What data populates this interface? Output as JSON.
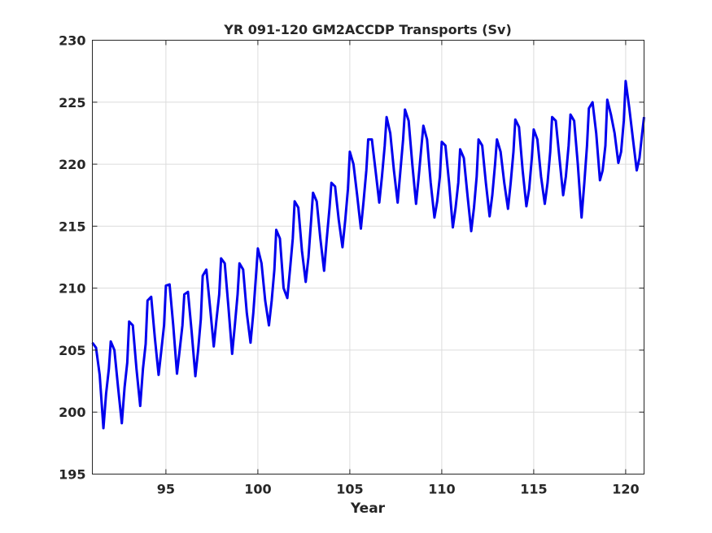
{
  "chart_data": {
    "type": "line",
    "title": "YR 091-120 GM2ACCDP Transports (Sv)",
    "xlabel": "Year",
    "ylabel": "",
    "xlim": [
      91,
      121
    ],
    "ylim": [
      195,
      230
    ],
    "xticks": [
      "95",
      "100",
      "105",
      "110",
      "115",
      "120"
    ],
    "yticks": [
      "195",
      "200",
      "205",
      "210",
      "215",
      "220",
      "225",
      "230"
    ],
    "grid": true,
    "series": [
      {
        "name": "",
        "color": "#0000ee",
        "x": [
          91.0,
          91.2,
          91.4,
          91.6,
          91.75,
          91.9,
          92.0,
          92.2,
          92.4,
          92.6,
          92.75,
          92.9,
          93.0,
          93.2,
          93.4,
          93.6,
          93.75,
          93.9,
          94.0,
          94.2,
          94.4,
          94.6,
          94.75,
          94.9,
          95.0,
          95.2,
          95.4,
          95.6,
          95.75,
          95.9,
          96.0,
          96.2,
          96.4,
          96.6,
          96.75,
          96.9,
          97.0,
          97.2,
          97.4,
          97.6,
          97.75,
          97.9,
          98.0,
          98.2,
          98.4,
          98.6,
          98.75,
          98.9,
          99.0,
          99.2,
          99.4,
          99.6,
          99.75,
          99.9,
          100.0,
          100.2,
          100.4,
          100.6,
          100.75,
          100.9,
          101.0,
          101.2,
          101.4,
          101.6,
          101.75,
          101.9,
          102.0,
          102.2,
          102.4,
          102.6,
          102.75,
          102.9,
          103.0,
          103.2,
          103.4,
          103.6,
          103.75,
          103.9,
          104.0,
          104.2,
          104.4,
          104.6,
          104.75,
          104.9,
          105.0,
          105.2,
          105.4,
          105.6,
          105.75,
          105.9,
          106.0,
          106.2,
          106.4,
          106.6,
          106.75,
          106.9,
          107.0,
          107.2,
          107.4,
          107.6,
          107.75,
          107.9,
          108.0,
          108.2,
          108.4,
          108.6,
          108.75,
          108.9,
          109.0,
          109.2,
          109.4,
          109.6,
          109.75,
          109.9,
          110.0,
          110.2,
          110.4,
          110.6,
          110.75,
          110.9,
          111.0,
          111.2,
          111.4,
          111.6,
          111.75,
          111.9,
          112.0,
          112.2,
          112.4,
          112.6,
          112.75,
          112.9,
          113.0,
          113.2,
          113.4,
          113.6,
          113.75,
          113.9,
          114.0,
          114.2,
          114.4,
          114.6,
          114.75,
          114.9,
          115.0,
          115.2,
          115.4,
          115.6,
          115.75,
          115.9,
          116.0,
          116.2,
          116.4,
          116.6,
          116.75,
          116.9,
          117.0,
          117.2,
          117.4,
          117.6,
          117.75,
          117.9,
          118.0,
          118.2,
          118.4,
          118.6,
          118.75,
          118.9,
          119.0,
          119.2,
          119.4,
          119.6,
          119.75,
          119.9,
          120.0,
          120.2,
          120.4,
          120.6,
          120.75,
          120.9,
          121.0
        ],
        "y": [
          205.6,
          205.2,
          203.0,
          198.7,
          201.5,
          203.5,
          205.7,
          205.0,
          202.0,
          199.1,
          202.0,
          204.0,
          207.3,
          207.0,
          203.5,
          200.5,
          203.5,
          205.5,
          209.0,
          209.3,
          206.0,
          203.0,
          205.0,
          207.0,
          210.2,
          210.3,
          207.0,
          203.1,
          205.0,
          207.0,
          209.5,
          209.7,
          206.5,
          202.9,
          205.0,
          207.5,
          211.0,
          211.5,
          208.5,
          205.3,
          207.5,
          209.5,
          212.4,
          212.0,
          208.5,
          204.7,
          207.0,
          209.5,
          212.0,
          211.5,
          208.0,
          205.6,
          208.0,
          211.0,
          213.2,
          212.0,
          209.0,
          207.0,
          209.0,
          211.5,
          214.7,
          214.0,
          210.0,
          209.2,
          211.5,
          214.0,
          217.0,
          216.5,
          213.0,
          210.5,
          212.5,
          215.5,
          217.7,
          217.0,
          214.0,
          211.4,
          214.0,
          216.5,
          218.5,
          218.2,
          215.5,
          213.3,
          215.5,
          218.0,
          221.0,
          220.0,
          217.5,
          214.8,
          217.0,
          219.5,
          222.0,
          222.0,
          219.5,
          216.9,
          219.0,
          221.5,
          223.8,
          222.5,
          219.5,
          216.9,
          219.5,
          222.0,
          224.4,
          223.5,
          220.0,
          216.8,
          219.0,
          221.5,
          223.1,
          222.0,
          218.5,
          215.7,
          217.0,
          219.0,
          221.8,
          221.5,
          218.5,
          214.9,
          216.5,
          218.5,
          221.2,
          220.5,
          217.5,
          214.6,
          216.5,
          219.0,
          222.0,
          221.5,
          218.5,
          215.8,
          217.5,
          220.0,
          222.0,
          221.0,
          218.5,
          216.4,
          218.5,
          221.0,
          223.6,
          223.0,
          219.5,
          216.6,
          218.0,
          220.5,
          222.8,
          222.0,
          219.0,
          216.8,
          218.5,
          221.0,
          223.8,
          223.5,
          220.5,
          217.5,
          219.0,
          221.5,
          224.0,
          223.5,
          220.0,
          215.7,
          218.5,
          221.5,
          224.5,
          225.0,
          222.5,
          218.7,
          219.5,
          221.5,
          225.2,
          224.0,
          222.5,
          220.1,
          221.0,
          223.5,
          226.7,
          224.5,
          222.0,
          219.5,
          220.5,
          222.5,
          223.8
        ]
      }
    ]
  }
}
